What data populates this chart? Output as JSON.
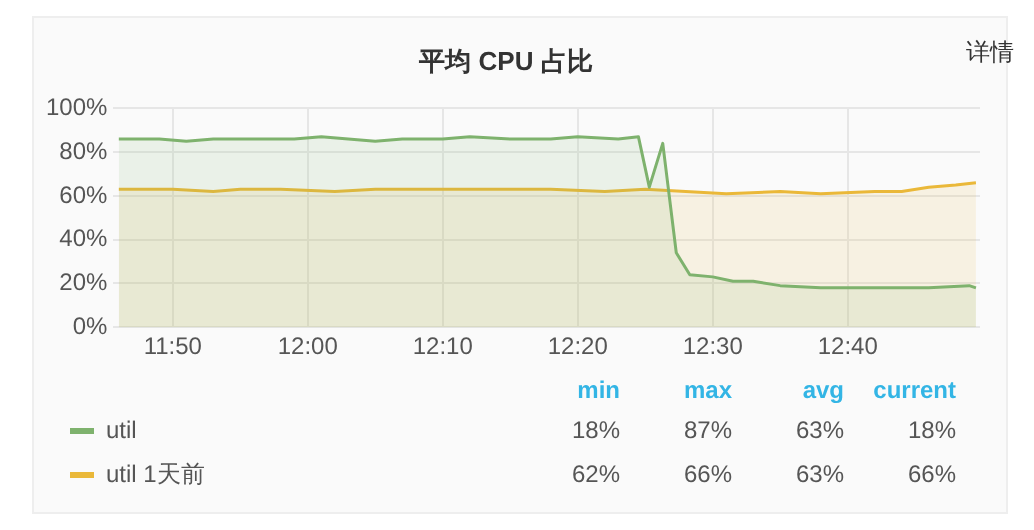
{
  "chart_data": {
    "type": "area",
    "title": "平均 CPU 占比",
    "series": [
      {
        "name": "util",
        "color": "#7eb26d",
        "x": [
          11.7667,
          11.8167,
          11.85,
          11.8833,
          11.9333,
          11.9833,
          12.0167,
          12.05,
          12.0833,
          12.1167,
          12.1667,
          12.2,
          12.25,
          12.3,
          12.3333,
          12.3833,
          12.4083,
          12.4217,
          12.4383,
          12.455,
          12.4717,
          12.5,
          12.525,
          12.55,
          12.5833,
          12.6333,
          12.7,
          12.7667,
          12.8167,
          12.825
        ],
        "values": [
          86,
          86,
          85,
          86,
          86,
          86,
          87,
          86,
          85,
          86,
          86,
          87,
          86,
          86,
          87,
          86,
          87,
          64,
          84,
          34,
          24,
          23,
          21,
          21,
          19,
          18,
          18,
          18,
          19,
          18
        ]
      },
      {
        "name": "util 1天前",
        "color": "#eab839",
        "x": [
          11.7667,
          11.8333,
          11.8833,
          11.9167,
          11.9667,
          12.0333,
          12.0833,
          12.1667,
          12.2167,
          12.3,
          12.3667,
          12.4167,
          12.4667,
          12.5167,
          12.5833,
          12.6333,
          12.7,
          12.7333,
          12.7667,
          12.8,
          12.825
        ],
        "values": [
          63,
          63,
          62,
          63,
          63,
          62,
          63,
          63,
          63,
          63,
          62,
          63,
          62,
          61,
          62,
          61,
          62,
          62,
          64,
          65,
          66
        ]
      }
    ],
    "xlim": [
      11.76,
      12.83
    ],
    "xticks": [
      {
        "value": 11.8333,
        "label": "11:50"
      },
      {
        "value": 12,
        "label": "12:00"
      },
      {
        "value": 12.1667,
        "label": "12:10"
      },
      {
        "value": 12.3333,
        "label": "12:20"
      },
      {
        "value": 12.5,
        "label": "12:30"
      },
      {
        "value": 12.6667,
        "label": "12:40"
      }
    ],
    "ylim": [
      0,
      100
    ],
    "yticks": [
      {
        "value": 0,
        "label": "0%"
      },
      {
        "value": 20,
        "label": "20%"
      },
      {
        "value": 40,
        "label": "40%"
      },
      {
        "value": 60,
        "label": "60%"
      },
      {
        "value": 80,
        "label": "80%"
      },
      {
        "value": 100,
        "label": "100%"
      }
    ],
    "grid": true,
    "legend": "bottom",
    "marker": "none",
    "line_style": "solid",
    "annotations": [
      "min",
      "max",
      "avg",
      "current",
      "18%",
      "87%",
      "63%",
      "18%",
      "62%",
      "66%",
      "63%",
      "66%",
      "详情"
    ]
  }
}
